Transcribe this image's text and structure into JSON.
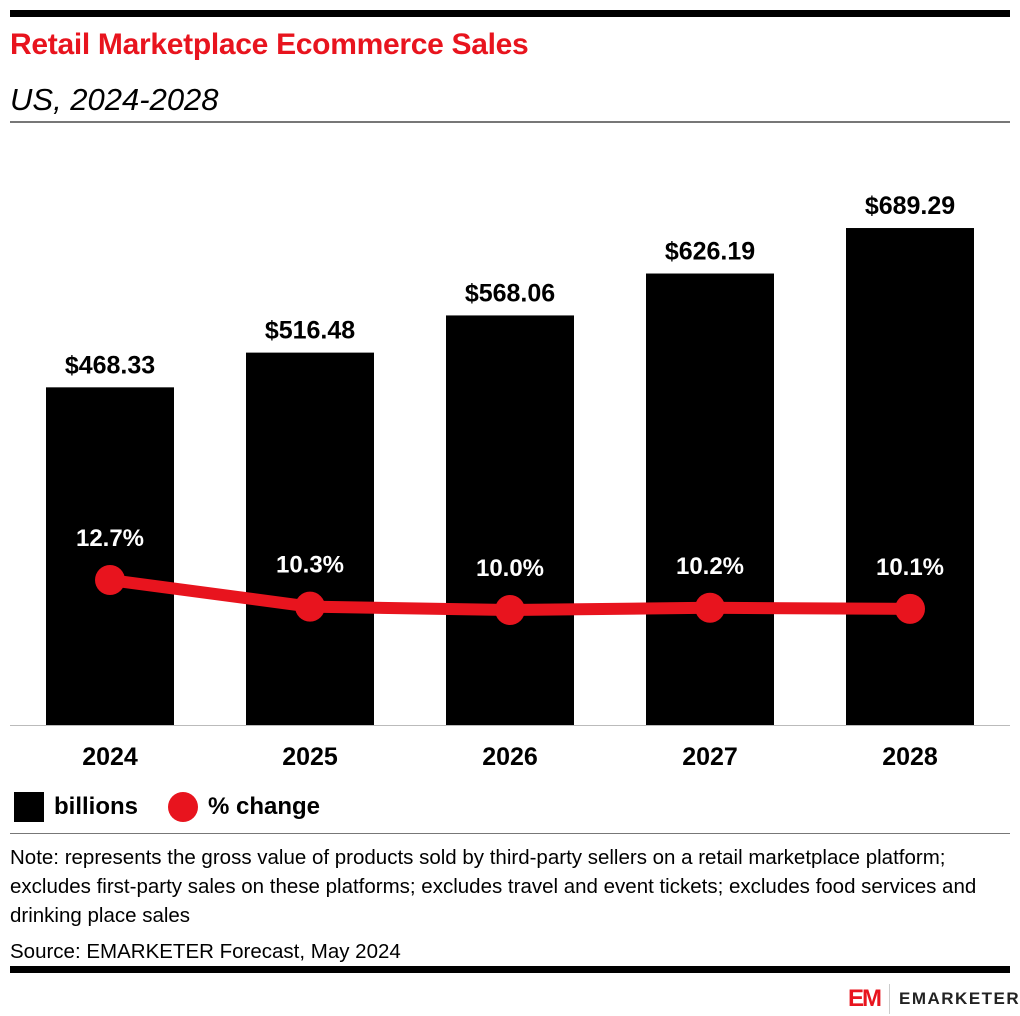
{
  "header": {
    "title": "Retail Marketplace Ecommerce Sales",
    "subtitle": "US, 2024-2028"
  },
  "chart_data": {
    "type": "bar+line",
    "categories": [
      "2024",
      "2025",
      "2026",
      "2027",
      "2028"
    ],
    "series": [
      {
        "name": "billions",
        "type": "bar",
        "values": [
          468.33,
          516.48,
          568.06,
          626.19,
          689.29
        ],
        "labels": [
          "$468.33",
          "$516.48",
          "$568.06",
          "$626.19",
          "$689.29"
        ],
        "color": "#000000"
      },
      {
        "name": "% change",
        "type": "line",
        "values": [
          12.7,
          10.3,
          10.0,
          10.2,
          10.1
        ],
        "labels": [
          "12.7%",
          "10.3%",
          "10.0%",
          "10.2%",
          "10.1%"
        ],
        "color": "#e8141e"
      }
    ],
    "grid": false,
    "legend": "bottom-left"
  },
  "legend": {
    "bars": "billions",
    "line": "% change"
  },
  "footer": {
    "note": "Note: represents the gross value of products sold by third-party sellers on a retail marketplace platform; excludes first-party sales on these platforms; excludes travel and event tickets; excludes food services and drinking place sales",
    "source": "Source: EMARKETER Forecast, May 2024",
    "logo_mark": "EM",
    "logo_text": "EMARKETER"
  }
}
